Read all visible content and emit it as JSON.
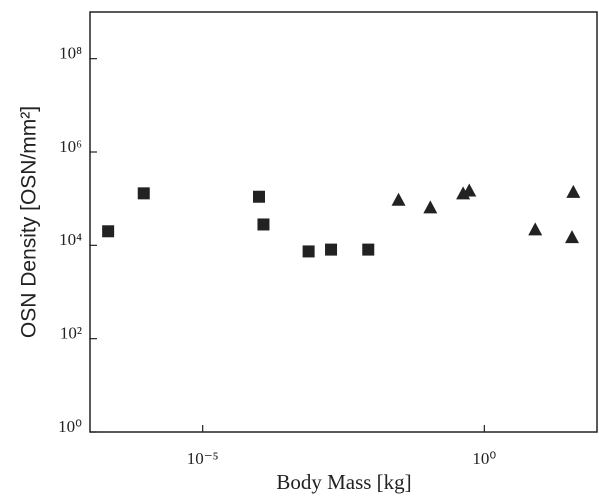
{
  "chart_data": {
    "type": "scatter",
    "xlabel": "Body Mass [kg]",
    "ylabel": "OSN Density [OSN/mm²]",
    "log_x": true,
    "log_y": true,
    "xlim": [
      1e-07,
      100
    ],
    "ylim": [
      1,
      1000000000.0
    ],
    "xticks": [
      {
        "value": 1e-05,
        "label": "10⁻⁵"
      },
      {
        "value": 1,
        "label": "10⁰"
      }
    ],
    "yticks": [
      {
        "value": 1,
        "label": "10⁰"
      },
      {
        "value": 100,
        "label": "10²"
      },
      {
        "value": 10000,
        "label": "10⁴"
      },
      {
        "value": 1000000,
        "label": "10⁶"
      },
      {
        "value": 100000000,
        "label": "10⁸"
      }
    ],
    "series": [
      {
        "marker": "square",
        "color": "#222222",
        "x": [
          2.1e-07,
          9e-07,
          0.0001,
          0.00012,
          0.00076,
          0.0019,
          0.0087
        ],
        "values": [
          20000,
          130000,
          110000,
          28000,
          7400,
          8100,
          8100
        ]
      },
      {
        "marker": "triangle",
        "color": "#222222",
        "x": [
          0.03,
          0.11,
          0.42,
          0.54,
          8,
          38,
          36
        ],
        "values": [
          95000,
          65000,
          130000,
          150000,
          22000,
          140000,
          15000
        ]
      }
    ]
  }
}
